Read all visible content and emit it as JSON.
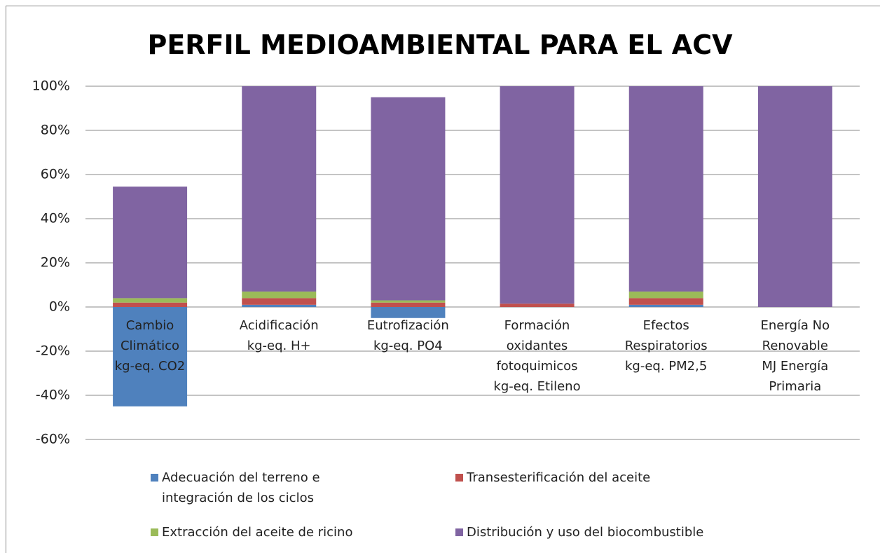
{
  "chart_data": {
    "type": "stacked_bar",
    "title": "PERFIL MEDIOAMBIENTAL PARA EL ACV",
    "categories": [
      "Cambio\nClimático\nkg-eq. CO2",
      "Acidificación\nkg-eq. H+",
      "Eutrofización\nkg-eq. PO4",
      "Formación\noxidantes\nfotoquimicos\nkg-eq. Etileno",
      "Efectos\nRespiratorios\nkg-eq. PM2,5",
      "Energía No\nRenovable\nMJ Energía\nPrimaria"
    ],
    "series": [
      {
        "name": "Adecuación del  terreno e\nintegración de los ciclos",
        "color": "#4f81bd",
        "values": [
          -45,
          1,
          -5,
          0,
          1,
          0
        ]
      },
      {
        "name": "Transesterificación del aceite",
        "color": "#c0504d",
        "values": [
          2,
          3,
          2,
          1.5,
          3,
          0
        ]
      },
      {
        "name": "Extracción del aceite de ricino",
        "color": "#9bbb59",
        "values": [
          2,
          3,
          1,
          0,
          3,
          0
        ]
      },
      {
        "name": "Distribución y uso del biocombustible",
        "color": "#8064a2",
        "values": [
          50.5,
          93,
          92,
          98.5,
          93,
          100
        ]
      }
    ],
    "ylim": [
      -60,
      100
    ],
    "yticks": [
      {
        "value": -60,
        "label": "-60%"
      },
      {
        "value": -40,
        "label": "-40%"
      },
      {
        "value": -20,
        "label": "-20%"
      },
      {
        "value": 0,
        "label": "0%"
      },
      {
        "value": 20,
        "label": "20%"
      },
      {
        "value": 40,
        "label": "40%"
      },
      {
        "value": 60,
        "label": "60%"
      },
      {
        "value": 80,
        "label": "80%"
      },
      {
        "value": 100,
        "label": "100%"
      }
    ],
    "grid": true
  }
}
